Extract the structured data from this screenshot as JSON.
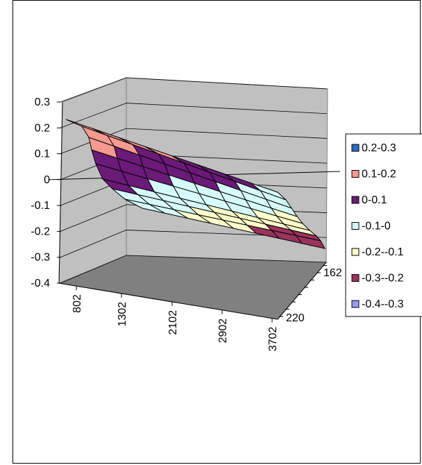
{
  "chart_data": {
    "type": "surface",
    "title": "",
    "xlabel": "",
    "ylabel": "",
    "zlabel": "",
    "ylim": [
      -0.4,
      0.3
    ],
    "z_ticks": [
      "0.3",
      "0.2",
      "0.1",
      "0",
      "-0.1",
      "-0.2",
      "-0.3",
      "-0.4"
    ],
    "x_ticks": [
      "802",
      "1302",
      "2102",
      "2902",
      "3702"
    ],
    "depth_ticks": [
      "220",
      "162"
    ],
    "grid": true,
    "legend_position": "right",
    "legend": [
      {
        "label": "0.2-0.3",
        "color": "#2e6cc4"
      },
      {
        "label": "0.1-0.2",
        "color": "#f59a90"
      },
      {
        "label": "0-0.1",
        "color": "#6b1a78"
      },
      {
        "label": "-0.1-0",
        "color": "#d6fbfb"
      },
      {
        "label": "-0.2--0.1",
        "color": "#ffffcc"
      },
      {
        "label": "-0.3--0.2",
        "color": "#99335c"
      },
      {
        "label": "-0.4--0.3",
        "color": "#9999ff"
      }
    ],
    "surface": {
      "left_edge": [
        0.23,
        0.195,
        0.16,
        0.125,
        0.09,
        0.055,
        0.02,
        -0.015,
        -0.05
      ],
      "right_edge": [
        -0.02,
        -0.055,
        -0.09,
        -0.125,
        -0.16,
        -0.195,
        -0.23,
        -0.265,
        -0.3
      ]
    }
  }
}
